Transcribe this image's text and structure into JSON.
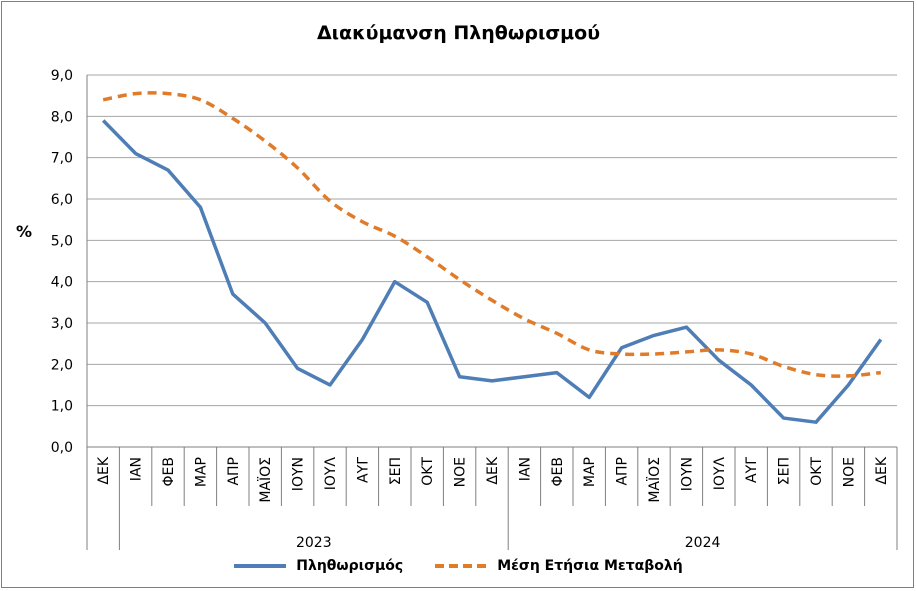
{
  "title": "Διακύμανση Πληθωρισμού",
  "ylabel": "%",
  "colors": {
    "inflation": "#4f7db5",
    "average": "#e07b2a",
    "grid": "#a6a6a6"
  },
  "chart_data": {
    "type": "line",
    "title": "Διακύμανση Πληθωρισμού",
    "xlabel": "",
    "ylabel": "%",
    "ylim": [
      0,
      9
    ],
    "yticks": [
      "0,0",
      "1,0",
      "2,0",
      "3,0",
      "4,0",
      "5,0",
      "6,0",
      "7,0",
      "8,0",
      "9,0"
    ],
    "categories": [
      "ΔΕΚ",
      "ΙΑΝ",
      "ΦΕΒ",
      "ΜΑΡ",
      "ΑΠΡ",
      "ΜΑΪΟΣ",
      "ΙΟΥΝ",
      "ΙΟΥΛ",
      "ΑΥΓ",
      "ΣΕΠ",
      "ΟΚΤ",
      "ΝΟΕ",
      "ΔΕΚ",
      "ΙΑΝ",
      "ΦΕΒ",
      "ΜΑΡ",
      "ΑΠΡ",
      "ΜΑΪΟΣ",
      "ΙΟΥΝ",
      "ΙΟΥΛ",
      "ΑΥΓ",
      "ΣΕΠ",
      "ΟΚΤ",
      "ΝΟΕ",
      "ΔΕΚ"
    ],
    "groups": [
      {
        "label": "2023",
        "from": 1,
        "to": 12
      },
      {
        "label": "2024",
        "from": 13,
        "to": 24
      }
    ],
    "grid": true,
    "legend_position": "bottom",
    "series": [
      {
        "name": "Πληθωρισμός",
        "style": "solid",
        "values": [
          7.9,
          7.1,
          6.7,
          5.8,
          3.7,
          3.0,
          1.9,
          1.5,
          2.6,
          4.0,
          3.5,
          1.7,
          1.6,
          1.7,
          1.8,
          1.2,
          2.4,
          2.7,
          2.9,
          2.1,
          1.5,
          0.7,
          0.6,
          1.5,
          2.6
        ]
      },
      {
        "name": "Μέση Ετήσια Μεταβολή",
        "style": "dashed",
        "values": [
          8.4,
          8.55,
          8.55,
          8.4,
          7.95,
          7.4,
          6.75,
          5.95,
          5.45,
          5.1,
          4.6,
          4.05,
          3.55,
          3.1,
          2.75,
          2.35,
          2.25,
          2.25,
          2.3,
          2.35,
          2.25,
          1.95,
          1.75,
          1.72,
          1.8
        ]
      }
    ]
  }
}
